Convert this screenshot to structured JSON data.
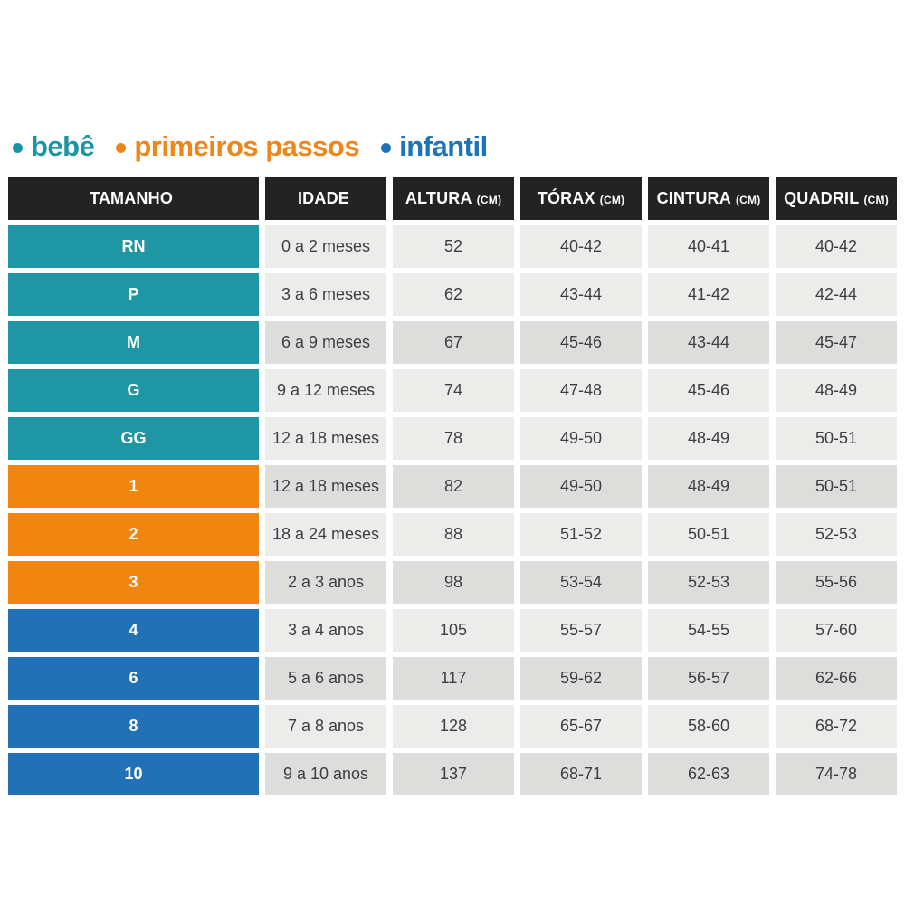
{
  "legend": {
    "items": [
      {
        "label": "bebê",
        "color": "#1b95a6"
      },
      {
        "label": "primeiros passos",
        "color": "#f0861a"
      },
      {
        "label": "infantil",
        "color": "#1d73ba"
      }
    ]
  },
  "chart_data": {
    "type": "table",
    "columns": [
      {
        "label": "TAMANHO",
        "unit": ""
      },
      {
        "label": "IDADE",
        "unit": ""
      },
      {
        "label": "ALTURA",
        "unit": "(CM)"
      },
      {
        "label": "TÓRAX",
        "unit": "(CM)"
      },
      {
        "label": "CINTURA",
        "unit": "(CM)"
      },
      {
        "label": "QUADRIL",
        "unit": "(CM)"
      }
    ],
    "rows": [
      {
        "size": "RN",
        "group": "bebê",
        "age": "0 a 2 meses",
        "altura": "52",
        "torax": "40-42",
        "cintura": "40-41",
        "quadril": "40-42"
      },
      {
        "size": "P",
        "group": "bebê",
        "age": "3 a 6 meses",
        "altura": "62",
        "torax": "43-44",
        "cintura": "41-42",
        "quadril": "42-44"
      },
      {
        "size": "M",
        "group": "bebê",
        "age": "6 a 9 meses",
        "altura": "67",
        "torax": "45-46",
        "cintura": "43-44",
        "quadril": "45-47"
      },
      {
        "size": "G",
        "group": "bebê",
        "age": "9 a 12 meses",
        "altura": "74",
        "torax": "47-48",
        "cintura": "45-46",
        "quadril": "48-49"
      },
      {
        "size": "GG",
        "group": "bebê",
        "age": "12 a 18 meses",
        "altura": "78",
        "torax": "49-50",
        "cintura": "48-49",
        "quadril": "50-51"
      },
      {
        "size": "1",
        "group": "primeiros passos",
        "age": "12 a 18 meses",
        "altura": "82",
        "torax": "49-50",
        "cintura": "48-49",
        "quadril": "50-51"
      },
      {
        "size": "2",
        "group": "primeiros passos",
        "age": "18 a 24 meses",
        "altura": "88",
        "torax": "51-52",
        "cintura": "50-51",
        "quadril": "52-53"
      },
      {
        "size": "3",
        "group": "primeiros passos",
        "age": "2 a 3 anos",
        "altura": "98",
        "torax": "53-54",
        "cintura": "52-53",
        "quadril": "55-56"
      },
      {
        "size": "4",
        "group": "infantil",
        "age": "3 a 4 anos",
        "altura": "105",
        "torax": "55-57",
        "cintura": "54-55",
        "quadril": "57-60"
      },
      {
        "size": "6",
        "group": "infantil",
        "age": "5 a 6 anos",
        "altura": "117",
        "torax": "59-62",
        "cintura": "56-57",
        "quadril": "62-66"
      },
      {
        "size": "8",
        "group": "infantil",
        "age": "7 a 8 anos",
        "altura": "128",
        "torax": "65-67",
        "cintura": "58-60",
        "quadril": "68-72"
      },
      {
        "size": "10",
        "group": "infantil",
        "age": "9 a 10 anos",
        "altura": "137",
        "torax": "68-71",
        "cintura": "62-63",
        "quadril": "74-78"
      }
    ]
  },
  "colors": {
    "bebe": "#1e96a4",
    "primeiros_passos": "#f0860f",
    "infantil": "#2271b7",
    "header_bg": "#232323",
    "row_light": "#ececeb",
    "row_dark": "#dddddc"
  }
}
